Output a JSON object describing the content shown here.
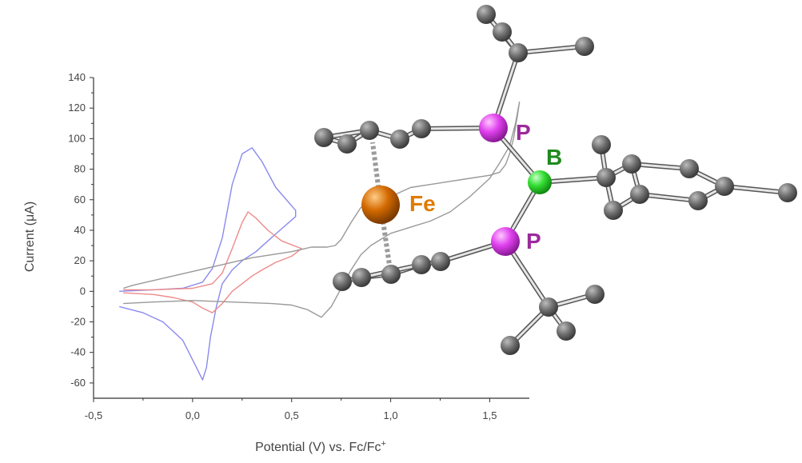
{
  "chart_data": {
    "type": "line",
    "xlabel": "Potential (V) vs. Fc/Fc",
    "xlabel_superscript": "+",
    "ylabel": "Current (μA)",
    "xlim": [
      -0.5,
      1.7
    ],
    "ylim": [
      -70,
      140
    ],
    "x_ticks": [
      -0.5,
      0.0,
      0.5,
      1.0,
      1.5
    ],
    "x_tick_labels": [
      "-0,5",
      "0,0",
      "0,5",
      "1,0",
      "1,5"
    ],
    "y_ticks": [
      -60,
      -40,
      -20,
      0,
      20,
      40,
      60,
      80,
      100,
      120,
      140
    ],
    "y_tick_labels": [
      "-60",
      "-40",
      "-20",
      "0",
      "20",
      "40",
      "60",
      "80",
      "100",
      "120",
      "140"
    ],
    "grid": false,
    "legend": "none",
    "series": [
      {
        "color": "#8a8aee",
        "x": [
          -0.37,
          -0.2,
          -0.05,
          0.05,
          0.1,
          0.15,
          0.2,
          0.25,
          0.3,
          0.35,
          0.42,
          0.52,
          0.52,
          0.45,
          0.38,
          0.32,
          0.25,
          0.2,
          0.15,
          0.12,
          0.09,
          0.07,
          0.05,
          0.02,
          -0.05,
          -0.15,
          -0.25,
          -0.37
        ],
        "y": [
          0,
          1,
          2,
          6,
          15,
          35,
          70,
          90,
          94,
          85,
          68,
          53,
          49,
          41,
          33,
          26,
          20,
          14,
          5,
          -10,
          -30,
          -50,
          -58,
          -50,
          -32,
          -20,
          -14,
          -10
        ]
      },
      {
        "color": "#ee8a8a",
        "x": [
          -0.35,
          -0.2,
          0.0,
          0.1,
          0.15,
          0.2,
          0.25,
          0.28,
          0.32,
          0.38,
          0.45,
          0.55,
          0.5,
          0.42,
          0.35,
          0.3,
          0.25,
          0.2,
          0.15,
          0.1,
          0.05,
          0.0,
          -0.1,
          -0.2,
          -0.35
        ],
        "y": [
          1,
          1,
          2,
          5,
          12,
          28,
          45,
          52,
          48,
          40,
          33,
          28,
          23,
          19,
          14,
          10,
          5,
          0,
          -8,
          -14,
          -11,
          -7,
          -4,
          -2,
          -1
        ]
      },
      {
        "color": "#999999",
        "x": [
          -0.35,
          -0.2,
          0.0,
          0.2,
          0.4,
          0.5,
          0.58,
          0.65,
          0.7,
          0.75,
          0.8,
          0.85,
          0.9,
          0.95,
          1.0,
          1.1,
          1.2,
          1.3,
          1.4,
          1.5,
          1.55,
          1.6,
          1.63,
          1.65,
          1.64,
          1.62,
          1.6,
          1.58,
          1.55,
          1.5,
          1.4,
          1.3,
          1.2,
          1.1,
          1.0,
          0.95,
          0.9,
          0.85,
          0.8,
          0.75,
          0.72,
          0.68,
          0.65,
          0.6,
          0.5,
          0.3,
          0.1,
          -0.1,
          -0.3,
          -0.35
        ],
        "y": [
          -8,
          -7,
          -6,
          -7,
          -8,
          -9,
          -12,
          -17,
          -10,
          2,
          14,
          24,
          30,
          34,
          38,
          42,
          46,
          52,
          62,
          74,
          84,
          95,
          110,
          124,
          115,
          100,
          90,
          83,
          78,
          76,
          74,
          72,
          70,
          68,
          62,
          57,
          56,
          55,
          45,
          34,
          30,
          29,
          29,
          29,
          26,
          22,
          16,
          10,
          4,
          2
        ]
      }
    ]
  },
  "molecule": {
    "labels": {
      "fe": "Fe",
      "p_top": "P",
      "p_bottom": "P",
      "b": "B"
    },
    "colors": {
      "fe": "#e07b00",
      "p": "#9b2a9b",
      "b": "#1e8a1e",
      "carbon": "#6a6a6a",
      "p_atom": "#e040ee",
      "b_atom": "#33dd33",
      "fe_atom": "#d46a00"
    }
  }
}
